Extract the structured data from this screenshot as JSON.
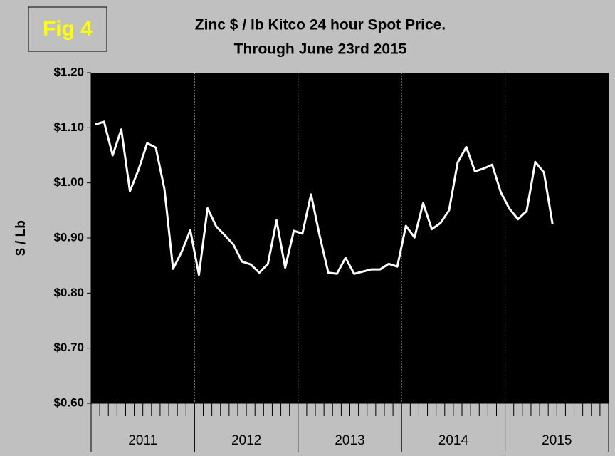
{
  "chart_data": {
    "type": "line",
    "figure_label": "Fig 4",
    "title": "Zinc $ / lb Kitco 24 hour Spot Price.",
    "subtitle": "Through June 23rd 2015",
    "y_label": "$ / Lb",
    "categories": [
      null,
      null,
      null,
      null,
      null,
      null,
      null,
      null,
      null,
      null,
      null,
      null,
      null,
      null,
      null,
      null,
      null,
      null,
      null,
      null,
      null,
      null,
      null,
      null,
      null,
      null,
      null,
      null,
      null,
      null,
      null,
      null,
      null,
      null,
      null,
      null,
      null,
      null,
      null,
      null,
      null,
      null,
      null,
      null,
      null,
      null,
      null,
      null,
      null,
      null,
      null,
      null,
      null,
      null
    ],
    "year_labels": [
      "2011",
      "2012",
      "2013",
      "2014",
      "2015"
    ],
    "values": [
      1.106,
      1.111,
      1.05,
      1.097,
      0.985,
      1.024,
      1.072,
      1.064,
      0.989,
      0.844,
      0.875,
      0.914,
      0.833,
      0.954,
      0.921,
      0.905,
      0.888,
      0.857,
      0.852,
      0.837,
      0.853,
      0.932,
      0.846,
      0.913,
      0.908,
      0.979,
      0.904,
      0.837,
      0.835,
      0.864,
      0.835,
      0.839,
      0.843,
      0.843,
      0.853,
      0.848,
      0.922,
      0.901,
      0.963,
      0.916,
      0.927,
      0.95,
      1.037,
      1.065,
      1.021,
      1.026,
      1.033,
      0.983,
      0.953,
      0.934,
      0.949,
      1.038,
      1.019,
      0.925
    ],
    "color": "#ffffff",
    "ylim": [
      0.6,
      1.2
    ],
    "yticks": [
      {
        "value": 0.6,
        "label": "$0.60"
      },
      {
        "value": 0.7,
        "label": "$0.70"
      },
      {
        "value": 0.8,
        "label": "$0.80"
      },
      {
        "value": 0.9,
        "label": "$0.90"
      },
      {
        "value": 1.0,
        "label": "$1.00"
      },
      {
        "value": 1.1,
        "label": "$1.10"
      },
      {
        "value": 1.2,
        "label": "$1.20"
      }
    ],
    "grid": false
  }
}
